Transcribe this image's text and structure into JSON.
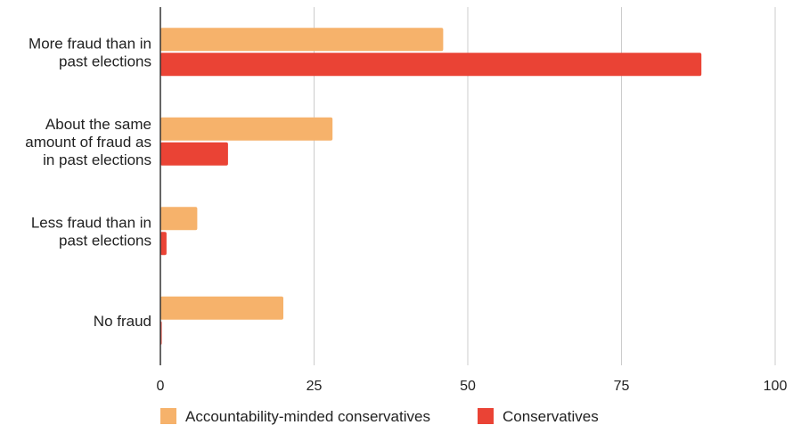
{
  "chart_data": {
    "type": "bar",
    "orientation": "horizontal",
    "categories": [
      [
        "More fraud than in",
        "past elections"
      ],
      [
        "About the same",
        "amount of fraud as",
        "in past elections"
      ],
      [
        "Less fraud than in",
        "past elections"
      ],
      [
        "No fraud"
      ]
    ],
    "series": [
      {
        "name": "Accountability-minded conservatives",
        "color": "#F6B26B",
        "values": [
          46,
          28,
          6,
          20
        ]
      },
      {
        "name": "Conservatives",
        "color": "#EA4335",
        "values": [
          88,
          11,
          1,
          0
        ]
      }
    ],
    "xlim": [
      0,
      100
    ],
    "xticks": [
      "0",
      "25",
      "50",
      "75",
      "100"
    ],
    "title": "",
    "xlabel": "",
    "ylabel": "",
    "grid": "vertical",
    "legend": "bottom"
  }
}
